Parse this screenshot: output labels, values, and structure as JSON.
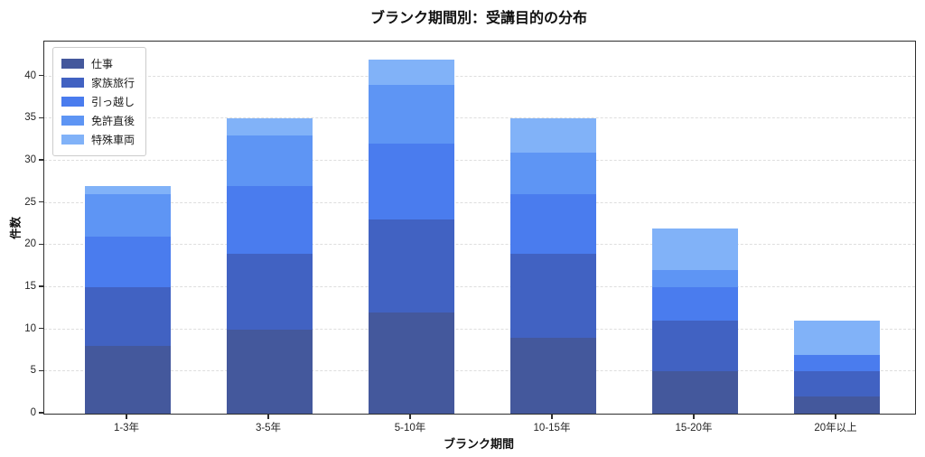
{
  "title": "ブランク期間別：受講目的の分布",
  "chart_data": {
    "type": "bar",
    "stacked": true,
    "title": "ブランク期間別：受講目的の分布",
    "xlabel": "ブランク期間",
    "ylabel": "件数",
    "categories": [
      "1-3年",
      "3-5年",
      "5-10年",
      "10-15年",
      "15-20年",
      "20年以上"
    ],
    "series": [
      {
        "name": "仕事",
        "color": "#44589C",
        "values": [
          8,
          10,
          12,
          9,
          5,
          2
        ]
      },
      {
        "name": "家族旅行",
        "color": "#4162C2",
        "values": [
          7,
          9,
          11,
          10,
          6,
          3
        ]
      },
      {
        "name": "引っ越し",
        "color": "#4A7CEE",
        "values": [
          6,
          8,
          9,
          7,
          4,
          2
        ]
      },
      {
        "name": "免許直後",
        "color": "#5E95F4",
        "values": [
          5,
          6,
          7,
          5,
          2,
          0
        ]
      },
      {
        "name": "特殊車両",
        "color": "#81B2F8",
        "values": [
          1,
          2,
          3,
          4,
          5,
          4
        ]
      }
    ],
    "stack_totals": [
      27,
      35,
      42,
      35,
      22,
      11
    ],
    "yticks": [
      0,
      5,
      10,
      15,
      20,
      25,
      30,
      35,
      40
    ],
    "ylim": [
      0,
      44.15
    ],
    "grid": "horizontal-dashed",
    "legend_position": "upper-left"
  }
}
